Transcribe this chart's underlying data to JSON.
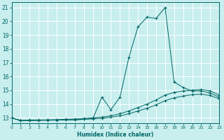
{
  "xlabel": "Humidex (Indice chaleur)",
  "bg_color": "#c8eeee",
  "line_color": "#006666",
  "grid_color": "#ffffff",
  "xlim": [
    0,
    23
  ],
  "ylim": [
    12.6,
    21.4
  ],
  "yticks": [
    13,
    14,
    15,
    16,
    17,
    18,
    19,
    20,
    21
  ],
  "xticks": [
    0,
    1,
    2,
    3,
    4,
    5,
    6,
    7,
    8,
    9,
    10,
    11,
    12,
    13,
    14,
    15,
    16,
    17,
    18,
    19,
    20,
    21,
    22,
    23
  ],
  "line1_x": [
    0,
    1,
    2,
    3,
    4,
    5,
    6,
    7,
    8,
    9,
    10,
    11,
    12,
    13,
    14,
    15,
    16,
    17,
    18,
    19,
    20,
    21,
    22,
    23
  ],
  "line1_y": [
    13.0,
    12.8,
    12.85,
    12.85,
    12.85,
    12.85,
    12.85,
    12.85,
    12.9,
    12.95,
    14.5,
    13.6,
    14.5,
    17.4,
    19.6,
    20.3,
    20.2,
    21.0,
    15.6,
    15.2,
    14.95,
    14.95,
    14.8,
    14.5
  ],
  "line2_x": [
    0,
    1,
    2,
    3,
    4,
    5,
    6,
    7,
    8,
    9,
    10,
    11,
    12,
    13,
    14,
    15,
    16,
    17,
    18,
    19,
    20,
    21,
    22,
    23
  ],
  "line2_y": [
    13.0,
    12.82,
    12.82,
    12.83,
    12.85,
    12.87,
    12.9,
    12.92,
    12.95,
    13.0,
    13.05,
    13.15,
    13.3,
    13.5,
    13.75,
    14.0,
    14.3,
    14.65,
    14.85,
    14.95,
    15.0,
    15.05,
    14.95,
    14.65
  ],
  "line3_x": [
    0,
    1,
    2,
    3,
    4,
    5,
    6,
    7,
    8,
    9,
    10,
    11,
    12,
    13,
    14,
    15,
    16,
    17,
    18,
    19,
    20,
    21,
    22,
    23
  ],
  "line3_y": [
    13.0,
    12.8,
    12.8,
    12.82,
    12.83,
    12.84,
    12.85,
    12.87,
    12.9,
    12.93,
    12.97,
    13.05,
    13.15,
    13.3,
    13.5,
    13.7,
    13.95,
    14.25,
    14.45,
    14.58,
    14.68,
    14.72,
    14.62,
    14.38
  ]
}
